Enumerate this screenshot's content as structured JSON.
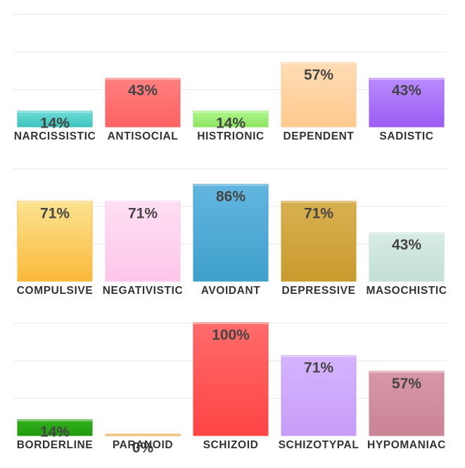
{
  "chart_data": [
    {
      "type": "bar",
      "categories": [
        "NARCISSISTIC",
        "ANTISOCIAL",
        "HISTRIONIC",
        "DEPENDENT",
        "SADISTIC"
      ],
      "values": [
        14,
        43,
        14,
        57,
        43
      ],
      "value_suffix": "%",
      "colors": [
        [
          "#6fdcd6",
          "#3ec4be"
        ],
        [
          "#ff7f7f",
          "#ff6262"
        ],
        [
          "#aef58a",
          "#8ee462"
        ],
        [
          "#ffdcb4",
          "#ffc98f"
        ],
        [
          "#b98bff",
          "#9c5cf3"
        ]
      ],
      "ylim": [
        0,
        100
      ],
      "grid": true
    },
    {
      "type": "bar",
      "categories": [
        "COMPULSIVE",
        "NEGATIVISTIC",
        "AVOIDANT",
        "DEPRESSIVE",
        "MASOCHISTIC"
      ],
      "values": [
        71,
        71,
        86,
        71,
        43
      ],
      "value_suffix": "%",
      "colors": [
        [
          "#fbe38f",
          "#fbb93c"
        ],
        [
          "#ffdff3",
          "#fdc6ea"
        ],
        [
          "#62b6e0",
          "#3fa0cb"
        ],
        [
          "#d8b050",
          "#c89b2d"
        ],
        [
          "#d6ebe3",
          "#c4e0d6"
        ]
      ],
      "ylim": [
        0,
        100
      ],
      "grid": true
    },
    {
      "type": "bar",
      "categories": [
        "BORDERLINE",
        "PARANOID",
        "SCHIZOID",
        "SCHIZOTYPAL",
        "HYPOMANIAC"
      ],
      "values": [
        14,
        0,
        100,
        71,
        57
      ],
      "value_suffix": "%",
      "colors": [
        [
          "#33b21c",
          "#229a10"
        ],
        [
          "#f5b042",
          "#e09520"
        ],
        [
          "#ff6b6b",
          "#ff4444"
        ],
        [
          "#d6b4ff",
          "#c79cf7"
        ],
        [
          "#d797a6",
          "#c98495"
        ]
      ],
      "ylim": [
        0,
        100
      ],
      "grid": true
    }
  ]
}
